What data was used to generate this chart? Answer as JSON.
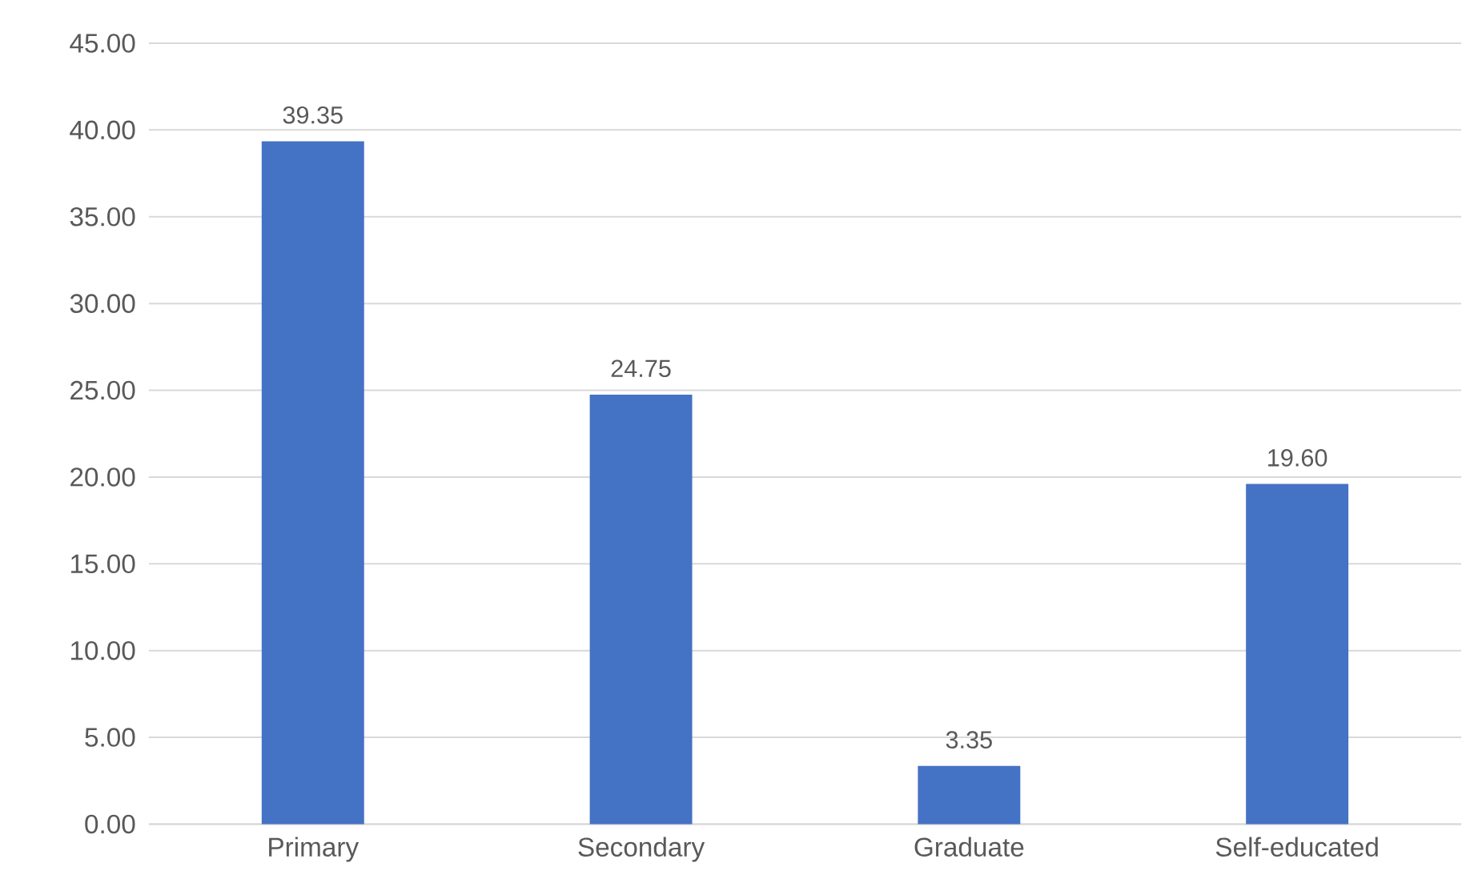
{
  "chart_data": {
    "type": "bar",
    "categories": [
      "Primary",
      "Secondary",
      "Graduate",
      "Self-educated"
    ],
    "values": [
      39.35,
      24.75,
      3.35,
      19.6
    ],
    "value_labels": [
      "39.35",
      "24.75",
      "3.35",
      "19.60"
    ],
    "color": "#4472c4",
    "ylim": [
      0,
      45
    ],
    "yticks": [
      {
        "value": 0,
        "label": "0.00"
      },
      {
        "value": 5,
        "label": "5.00"
      },
      {
        "value": 10,
        "label": "10.00"
      },
      {
        "value": 15,
        "label": "15.00"
      },
      {
        "value": 20,
        "label": "20.00"
      },
      {
        "value": 25,
        "label": "25.00"
      },
      {
        "value": 30,
        "label": "30.00"
      },
      {
        "value": 35,
        "label": "35.00"
      },
      {
        "value": 40,
        "label": "40.00"
      },
      {
        "value": 45,
        "label": "45.00"
      }
    ],
    "grid": "y"
  }
}
